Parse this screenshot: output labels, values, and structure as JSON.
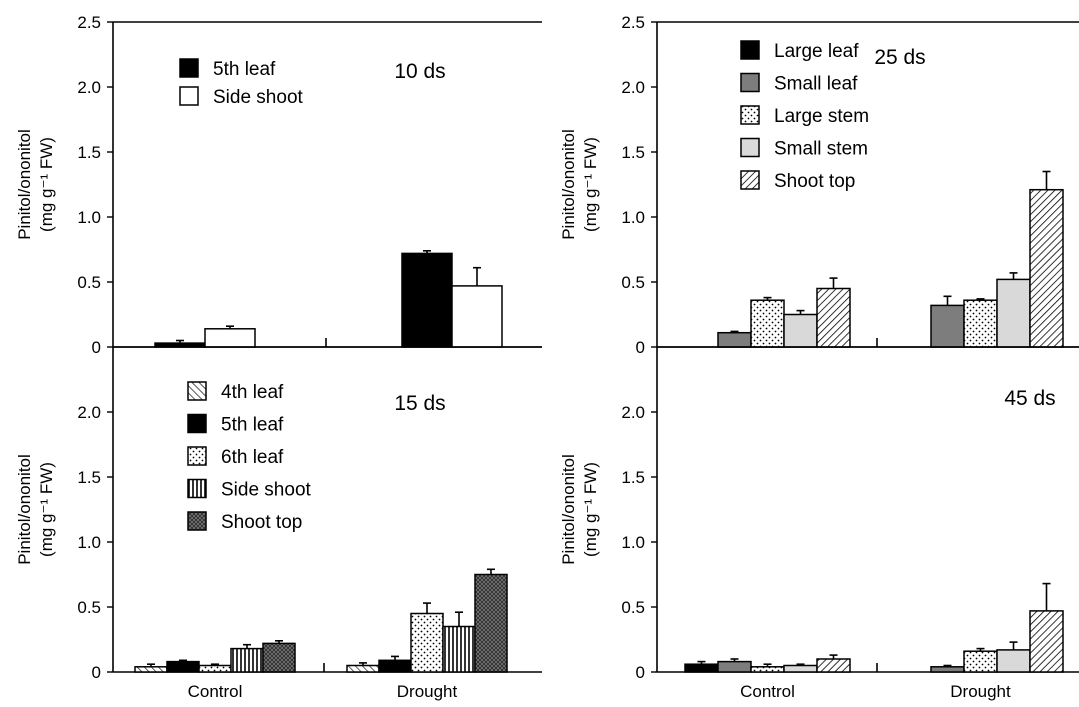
{
  "colors": {
    "axis": "#000000",
    "background": "#ffffff"
  },
  "chart_data": [
    {
      "type": "bar",
      "title": "10 ds",
      "ylabel_line1": "Pinitol/ononitol",
      "ylabel_line2": "(mg g⁻¹ FW)",
      "ylim": [
        0,
        2.5
      ],
      "yticks": [
        "0",
        "0.5",
        "1.0",
        "1.5",
        "2.0",
        "2.5"
      ],
      "categories": [
        "Control",
        "Drought"
      ],
      "show_category_labels": false,
      "legend_position": "upper-left",
      "series": [
        {
          "name": "5th leaf",
          "values": [
            0.03,
            0.72
          ],
          "errors": [
            0.02,
            0.02
          ],
          "pattern": "solid-black"
        },
        {
          "name": "Side shoot",
          "values": [
            0.14,
            0.47
          ],
          "errors": [
            0.02,
            0.14
          ],
          "pattern": "white"
        }
      ]
    },
    {
      "type": "bar",
      "title": "25 ds",
      "ylabel_line1": "Pinitol/ononitol",
      "ylabel_line2": "(mg g⁻¹ FW)",
      "ylim": [
        0,
        2.5
      ],
      "yticks": [
        "0",
        "0.5",
        "1.0",
        "1.5",
        "2.0",
        "2.5"
      ],
      "categories": [
        "Control",
        "Drought"
      ],
      "show_category_labels": false,
      "legend_position": "upper-left",
      "series": [
        {
          "name": "Large leaf",
          "values": [
            0,
            0
          ],
          "errors": [
            0,
            0
          ],
          "pattern": "solid-black"
        },
        {
          "name": "Small leaf",
          "values": [
            0.11,
            0.32
          ],
          "errors": [
            0.01,
            0.07
          ],
          "pattern": "dark-gray"
        },
        {
          "name": "Large stem",
          "values": [
            0.36,
            0.36
          ],
          "errors": [
            0.02,
            0.01
          ],
          "pattern": "dots"
        },
        {
          "name": "Small stem",
          "values": [
            0.25,
            0.52
          ],
          "errors": [
            0.03,
            0.05
          ],
          "pattern": "light-gray"
        },
        {
          "name": "Shoot top",
          "values": [
            0.45,
            1.21
          ],
          "errors": [
            0.08,
            0.14
          ],
          "pattern": "diag-back"
        }
      ]
    },
    {
      "type": "bar",
      "title": "15 ds",
      "ylabel_line1": "Pinitol/ononitol",
      "ylabel_line2": "(mg g⁻¹ FW)",
      "ylim": [
        0,
        2.5
      ],
      "yticks": [
        "0",
        "0.5",
        "1.0",
        "1.5",
        "2.0"
      ],
      "categories": [
        "Control",
        "Drought"
      ],
      "show_category_labels": true,
      "legend_position": "upper-left",
      "series": [
        {
          "name": "4th leaf",
          "values": [
            0.04,
            0.05
          ],
          "errors": [
            0.02,
            0.02
          ],
          "pattern": "diag-fwd"
        },
        {
          "name": "5th leaf",
          "values": [
            0.08,
            0.09
          ],
          "errors": [
            0.01,
            0.03
          ],
          "pattern": "solid-black"
        },
        {
          "name": "6th leaf",
          "values": [
            0.05,
            0.45
          ],
          "errors": [
            0.01,
            0.08
          ],
          "pattern": "dots"
        },
        {
          "name": "Side shoot",
          "values": [
            0.18,
            0.35
          ],
          "errors": [
            0.03,
            0.11
          ],
          "pattern": "vertical"
        },
        {
          "name": "Shoot top",
          "values": [
            0.22,
            0.75
          ],
          "errors": [
            0.02,
            0.04
          ],
          "pattern": "crosshatch"
        }
      ]
    },
    {
      "type": "bar",
      "title": "45 ds",
      "ylabel_line1": "Pinitol/ononitol",
      "ylabel_line2": "(mg g⁻¹ FW)",
      "ylim": [
        0,
        2.5
      ],
      "yticks": [
        "0",
        "0.5",
        "1.0",
        "1.5",
        "2.0"
      ],
      "categories": [
        "Control",
        "Drought"
      ],
      "show_category_labels": true,
      "legend_position": "none",
      "series": [
        {
          "name": "Large leaf",
          "values": [
            0.06,
            0
          ],
          "errors": [
            0.02,
            0
          ],
          "pattern": "solid-black"
        },
        {
          "name": "Small leaf",
          "values": [
            0.08,
            0.04
          ],
          "errors": [
            0.02,
            0.01
          ],
          "pattern": "dark-gray"
        },
        {
          "name": "Large stem",
          "values": [
            0.04,
            0.16
          ],
          "errors": [
            0.02,
            0.02
          ],
          "pattern": "dots"
        },
        {
          "name": "Small stem",
          "values": [
            0.05,
            0.17
          ],
          "errors": [
            0.01,
            0.06
          ],
          "pattern": "light-gray"
        },
        {
          "name": "Shoot top",
          "values": [
            0.1,
            0.47
          ],
          "errors": [
            0.03,
            0.21
          ],
          "pattern": "diag-back"
        }
      ]
    }
  ]
}
